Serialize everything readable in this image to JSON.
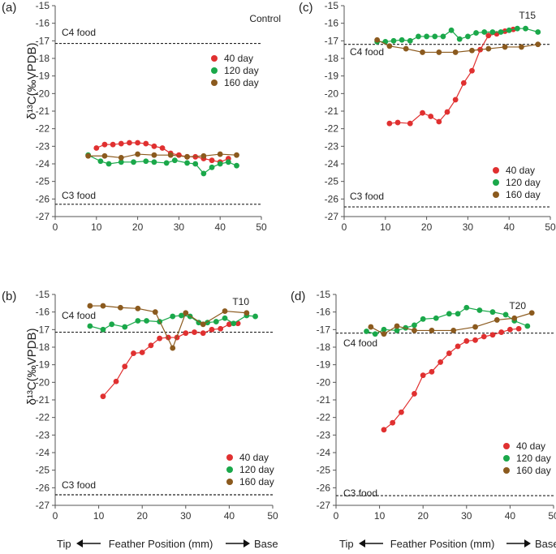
{
  "figure": {
    "ylabel": "δ¹³C(‰VPDB)",
    "xlabel": "Feather Position (mm)",
    "tip_label": "Tip",
    "base_label": "Base",
    "legend": [
      "40 day",
      "120 day",
      "160 day"
    ],
    "legend_colors": [
      "#e03030",
      "#1aa84a",
      "#8b5a1e"
    ]
  },
  "chart_data": [
    {
      "panel": "(a)",
      "title": "Control",
      "type": "line",
      "xlim": [
        0,
        50
      ],
      "ylim": [
        -27,
        -15
      ],
      "xticks": [
        0,
        10,
        20,
        30,
        40,
        50
      ],
      "yticks": [
        -27,
        -26,
        -25,
        -24,
        -23,
        -22,
        -21,
        -20,
        -19,
        -18,
        -17,
        -16,
        -15
      ],
      "annotations": [
        {
          "text": "C4 food",
          "y": -17.15
        },
        {
          "text": "C3 food",
          "y": -26.3
        }
      ],
      "series": [
        {
          "name": "40 day",
          "color": "#e03030",
          "x": [
            10,
            12,
            14,
            16,
            18,
            20,
            22,
            24,
            26,
            28,
            30,
            32,
            34,
            36,
            38,
            40,
            42
          ],
          "y": [
            -23.1,
            -22.9,
            -22.9,
            -22.85,
            -22.8,
            -22.8,
            -22.85,
            -23.0,
            -23.1,
            -23.4,
            -23.5,
            -23.6,
            -23.6,
            -23.7,
            -23.8,
            -23.9,
            -23.7
          ]
        },
        {
          "name": "120 day",
          "color": "#1aa84a",
          "x": [
            8,
            11,
            13,
            16,
            19,
            22,
            24,
            27,
            29,
            32,
            34,
            36,
            38,
            40,
            42,
            44
          ],
          "y": [
            -23.5,
            -23.85,
            -24.0,
            -23.9,
            -23.9,
            -23.85,
            -23.9,
            -23.95,
            -23.8,
            -23.95,
            -24.0,
            -24.55,
            -24.2,
            -24.0,
            -23.9,
            -24.1
          ]
        },
        {
          "name": "160 day",
          "color": "#8b5a1e",
          "x": [
            8,
            12,
            16,
            20,
            24,
            28,
            32,
            36,
            40,
            44
          ],
          "y": [
            -23.55,
            -23.55,
            -23.65,
            -23.45,
            -23.5,
            -23.5,
            -23.6,
            -23.55,
            -23.45,
            -23.5
          ]
        }
      ]
    },
    {
      "panel": "(c)",
      "title": "T15",
      "type": "line",
      "xlim": [
        0,
        50
      ],
      "ylim": [
        -27,
        -15
      ],
      "xticks": [
        0,
        10,
        20,
        30,
        40,
        50
      ],
      "yticks": [
        -27,
        -26,
        -25,
        -24,
        -23,
        -22,
        -21,
        -20,
        -19,
        -18,
        -17,
        -16,
        -15
      ],
      "annotations": [
        {
          "text": "C4 food",
          "y": -17.2
        },
        {
          "text": "C3 food",
          "y": -26.45
        }
      ],
      "series": [
        {
          "name": "40 day",
          "color": "#e03030",
          "x": [
            11,
            13,
            16,
            19,
            21,
            23,
            25,
            27,
            29,
            31,
            33,
            35,
            37,
            39,
            41
          ],
          "y": [
            -21.7,
            -21.65,
            -21.7,
            -21.1,
            -21.3,
            -21.6,
            -21.05,
            -20.35,
            -19.4,
            -18.7,
            -17.5,
            -16.7,
            -16.6,
            -16.45,
            -16.35
          ]
        },
        {
          "name": "120 day",
          "color": "#1aa84a",
          "x": [
            8,
            10,
            12,
            14,
            16,
            18,
            20,
            22,
            24,
            26,
            28,
            30,
            32,
            34,
            36,
            38,
            40,
            42,
            44,
            47
          ],
          "y": [
            -17.05,
            -17.05,
            -17.0,
            -16.95,
            -17.0,
            -16.75,
            -16.75,
            -16.75,
            -16.75,
            -16.4,
            -16.9,
            -16.75,
            -16.55,
            -16.5,
            -16.5,
            -16.5,
            -16.4,
            -16.3,
            -16.3,
            -16.5
          ]
        },
        {
          "name": "160 day",
          "color": "#8b5a1e",
          "x": [
            8,
            11,
            15,
            19,
            23,
            27,
            31,
            35,
            39,
            43,
            47
          ],
          "y": [
            -16.95,
            -17.3,
            -17.45,
            -17.65,
            -17.65,
            -17.65,
            -17.55,
            -17.45,
            -17.35,
            -17.35,
            -17.2
          ]
        }
      ]
    },
    {
      "panel": "(b)",
      "title": "T10",
      "type": "line",
      "xlim": [
        0,
        50
      ],
      "ylim": [
        -27,
        -15
      ],
      "xticks": [
        0,
        10,
        20,
        30,
        40,
        50
      ],
      "yticks": [
        -27,
        -26,
        -25,
        -24,
        -23,
        -22,
        -21,
        -20,
        -19,
        -18,
        -17,
        -16,
        -15
      ],
      "annotations": [
        {
          "text": "C4 food",
          "y": -17.15
        },
        {
          "text": "C3 food",
          "y": -26.4
        }
      ],
      "series": [
        {
          "name": "40 day",
          "color": "#e03030",
          "x": [
            11,
            14,
            16,
            18,
            20,
            22,
            24,
            26,
            28,
            30,
            32,
            34,
            36,
            38,
            40,
            42
          ],
          "y": [
            -20.8,
            -19.95,
            -19.1,
            -18.35,
            -18.3,
            -17.9,
            -17.5,
            -17.45,
            -17.45,
            -17.2,
            -17.15,
            -17.2,
            -17.0,
            -16.95,
            -16.7,
            -16.65
          ]
        },
        {
          "name": "120 day",
          "color": "#1aa84a",
          "x": [
            8,
            11,
            13,
            16,
            19,
            21,
            24,
            27,
            29,
            31,
            33,
            35,
            37,
            39,
            41,
            44,
            46
          ],
          "y": [
            -16.8,
            -17.0,
            -16.7,
            -16.85,
            -16.5,
            -16.5,
            -16.55,
            -16.25,
            -16.2,
            -16.25,
            -16.6,
            -16.6,
            -16.55,
            -16.35,
            -16.65,
            -16.2,
            -16.25
          ]
        },
        {
          "name": "160 day",
          "color": "#8b5a1e",
          "x": [
            8,
            11,
            15,
            19,
            23,
            27,
            30,
            34,
            39,
            44
          ],
          "y": [
            -15.65,
            -15.65,
            -15.75,
            -15.8,
            -16.0,
            -18.05,
            -16.05,
            -16.7,
            -15.95,
            -16.05
          ]
        }
      ]
    },
    {
      "panel": "(d)",
      "title": "T20",
      "type": "line",
      "xlim": [
        0,
        50
      ],
      "ylim": [
        -27,
        -15
      ],
      "xticks": [
        0,
        10,
        20,
        30,
        40,
        50
      ],
      "yticks": [
        -27,
        -26,
        -25,
        -24,
        -23,
        -22,
        -21,
        -20,
        -19,
        -18,
        -17,
        -16,
        -15
      ],
      "annotations": [
        {
          "text": "C4 food",
          "y": -17.2
        },
        {
          "text": "C3 food",
          "y": -26.45
        }
      ],
      "series": [
        {
          "name": "40 day",
          "color": "#e03030",
          "x": [
            11,
            13,
            15,
            18,
            20,
            22,
            24,
            26,
            28,
            30,
            32,
            34,
            36,
            38,
            40,
            42
          ],
          "y": [
            -22.7,
            -22.3,
            -21.7,
            -20.65,
            -19.6,
            -19.4,
            -18.85,
            -18.35,
            -17.95,
            -17.65,
            -17.6,
            -17.4,
            -17.3,
            -17.15,
            -17.0,
            -16.95
          ]
        },
        {
          "name": "120 day",
          "color": "#1aa84a",
          "x": [
            7,
            9,
            11,
            14,
            16,
            18,
            20,
            23,
            26,
            28,
            30,
            33,
            36,
            39,
            41,
            44
          ],
          "y": [
            -17.1,
            -17.25,
            -17.0,
            -17.05,
            -16.9,
            -16.75,
            -16.4,
            -16.35,
            -16.1,
            -16.1,
            -15.75,
            -15.9,
            -16.0,
            -16.15,
            -16.5,
            -16.8
          ]
        },
        {
          "name": "160 day",
          "color": "#8b5a1e",
          "x": [
            8,
            11,
            14,
            18,
            22,
            27,
            32,
            37,
            41,
            45
          ],
          "y": [
            -16.85,
            -17.25,
            -16.8,
            -17.05,
            -17.05,
            -17.05,
            -16.85,
            -16.45,
            -16.35,
            -16.05
          ]
        }
      ]
    }
  ]
}
